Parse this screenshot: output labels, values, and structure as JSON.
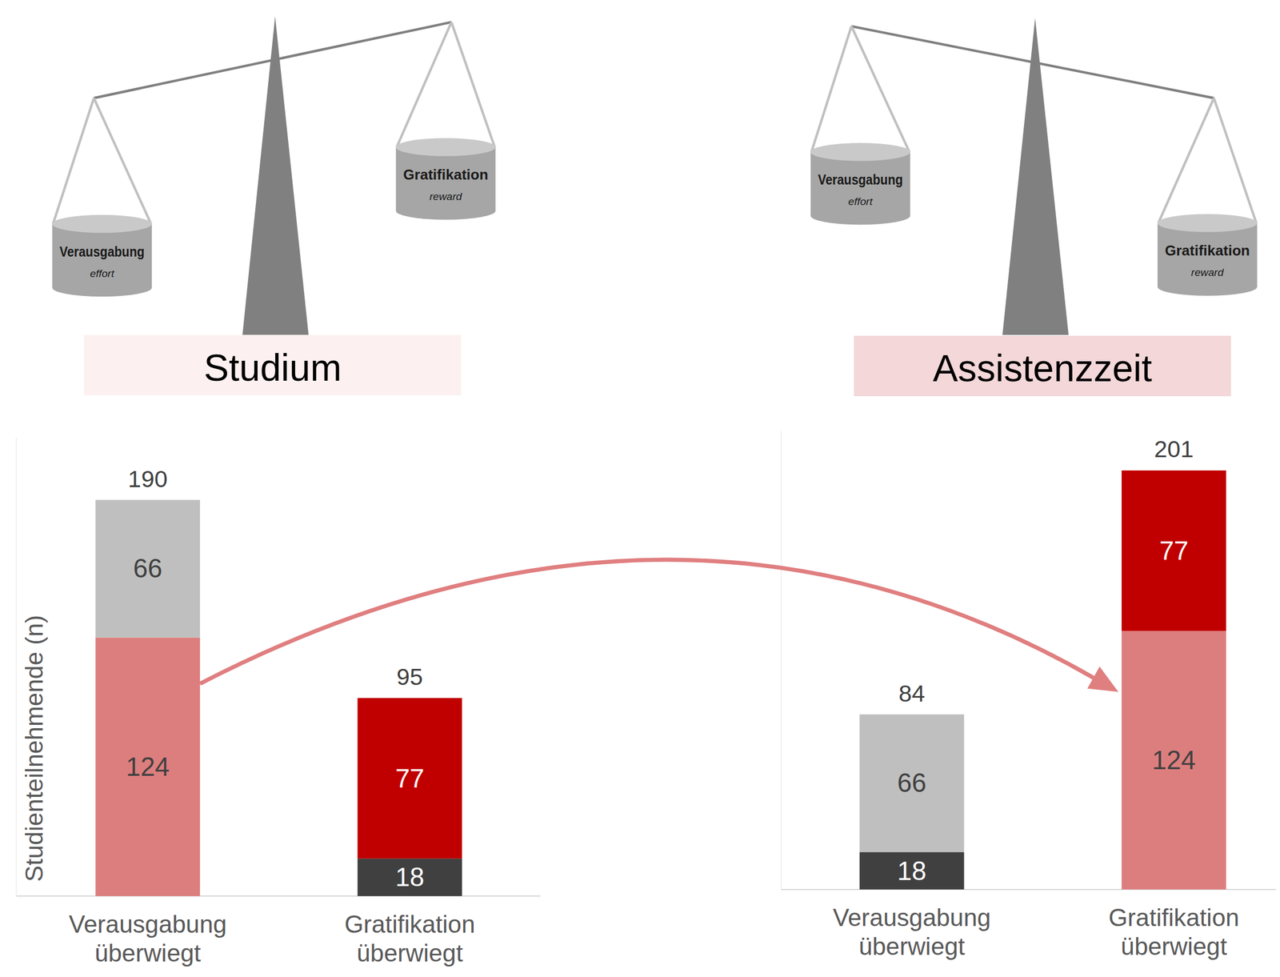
{
  "chart_data": [
    {
      "type": "bar",
      "title": "Studium",
      "y_label": "Studienteilnehmende (n)",
      "categories": [
        "Verausgabung überwiegt",
        "Gratifikation überwiegt"
      ],
      "series": [
        {
          "color": "#dd7e7e",
          "values": [
            124,
            null
          ]
        },
        {
          "color": "#bfbfbf",
          "values": [
            66,
            null
          ]
        },
        {
          "color": "#404040",
          "values": [
            null,
            18
          ]
        },
        {
          "color": "#c00000",
          "values": [
            null,
            77
          ]
        }
      ],
      "totals": [
        190,
        95
      ],
      "ylim": [
        0,
        220
      ],
      "yticks": [],
      "stacked": true,
      "data_labels": true,
      "tick_labels": "x",
      "grid": false,
      "annotations": {
        "effort": {
          "label": "Verausgabung",
          "sublabel": "effort"
        },
        "reward": {
          "label": "Gratifikation",
          "sublabel": "reward"
        }
      }
    },
    {
      "type": "bar",
      "title": "Assistenzzeit",
      "categories": [
        "Verausgabung überwiegt",
        "Gratifikation überwiegt"
      ],
      "series": [
        {
          "color": "#404040",
          "values": [
            18,
            null
          ]
        },
        {
          "color": "#bfbfbf",
          "values": [
            66,
            null
          ]
        },
        {
          "color": "#dd7e7e",
          "values": [
            null,
            124
          ]
        },
        {
          "color": "#c00000",
          "values": [
            null,
            77
          ]
        }
      ],
      "totals": [
        84,
        201
      ],
      "ylim": [
        0,
        220
      ],
      "yticks": [],
      "stacked": true,
      "data_labels": true,
      "tick_labels": "x",
      "grid": false,
      "annotations": {
        "effort": {
          "label": "Verausgabung",
          "sublabel": "effort"
        },
        "reward": {
          "label": "Gratifikation",
          "sublabel": "reward"
        }
      }
    }
  ]
}
